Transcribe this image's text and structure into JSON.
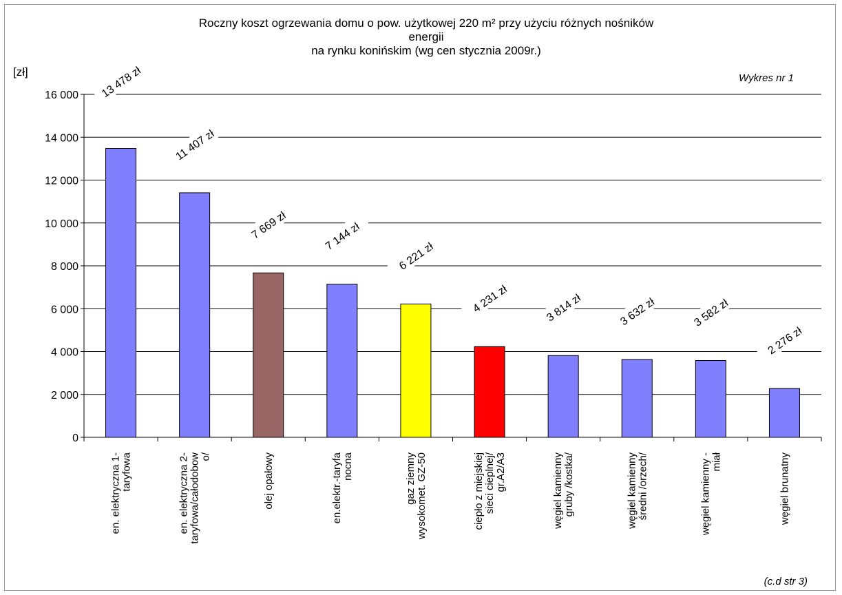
{
  "chart_data": {
    "type": "bar",
    "title_lines": [
      "Roczny koszt ogrzewania domu o pow. użytkowej 220 m² przy użyciu różnych nośników",
      "energii",
      "na rynku konińskim (wg cen stycznia 2009r.)"
    ],
    "ylabel": "[zł]",
    "ylim": [
      0,
      16000
    ],
    "yticks": [
      0,
      2000,
      4000,
      6000,
      8000,
      10000,
      12000,
      14000,
      16000
    ],
    "ytick_labels": [
      "0",
      "2 000",
      "4 000",
      "6 000",
      "8 000",
      "10 000",
      "12 000",
      "14 000",
      "16 000"
    ],
    "grid": true,
    "categories": [
      [
        "en. elektryczna 1-",
        "taryfowa"
      ],
      [
        "en. elektryczna 2-",
        "taryfowa/całodobow",
        "o/"
      ],
      [
        "olej opałowy"
      ],
      [
        "en.elektr.-taryfa",
        "nocna"
      ],
      [
        "gaz ziemny",
        "wysokomet. GZ-50"
      ],
      [
        "ciepło z miejskiej",
        "sieci cieplnej/",
        "gr.A2/A3"
      ],
      [
        "węgiel kamienny",
        "gruby /kostka/"
      ],
      [
        "węgiel kamienny",
        "średni /orzech/"
      ],
      [
        "węgiel kamienny -",
        "miał"
      ],
      [
        "węgiel brunatny"
      ]
    ],
    "values": [
      13478,
      11407,
      7669,
      7144,
      6221,
      4231,
      3814,
      3632,
      3582,
      2276
    ],
    "data_labels": [
      "13 478 zł",
      "11 407 zł",
      "7 669 zł",
      "7 144 zł",
      "6 221 zł",
      "4 231 zł",
      "3 814 zł",
      "3 632 zł",
      "3 582 zł",
      "2 276 zł"
    ],
    "colors": [
      "#8080ff",
      "#8080ff",
      "#996666",
      "#8080ff",
      "#ffff00",
      "#ff0000",
      "#8080ff",
      "#8080ff",
      "#8080ff",
      "#8080ff"
    ],
    "chart_number_note": "Wykres nr 1",
    "footer_note": "(c.d str 3)"
  }
}
